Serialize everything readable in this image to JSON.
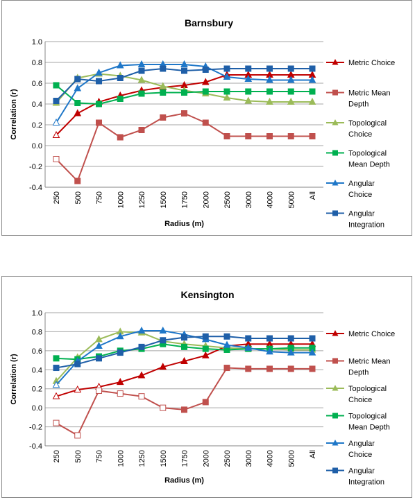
{
  "chart_data": [
    {
      "type": "line",
      "title": "Barnsbury",
      "xlabel": "Radius (m)",
      "ylabel": "Correlation (r)",
      "categories": [
        "250",
        "500",
        "750",
        "1000",
        "1250",
        "1500",
        "1750",
        "2000",
        "2500",
        "3000",
        "4000",
        "5000",
        "All"
      ],
      "ylim": [
        -0.4,
        1.0
      ],
      "yticks": [
        "-0.4",
        "-0.2",
        "0.0",
        "0.2",
        "0.4",
        "0.6",
        "0.8",
        "1.0"
      ],
      "grid": true,
      "legend_position": "right",
      "series": [
        {
          "name": "Metric Choice",
          "color": "#c00000",
          "marker": "triangle",
          "hollow_first": 1,
          "values": [
            0.1,
            0.31,
            0.42,
            0.48,
            0.53,
            0.56,
            0.58,
            0.61,
            0.68,
            0.68,
            0.68,
            0.68,
            0.68
          ]
        },
        {
          "name": "Metric Mean Depth",
          "color": "#c0504d",
          "marker": "square",
          "hollow_first": 1,
          "values": [
            -0.13,
            -0.34,
            0.22,
            0.08,
            0.15,
            0.27,
            0.31,
            0.22,
            0.09,
            0.09,
            0.09,
            0.09,
            0.09
          ]
        },
        {
          "name": "Topological Choice",
          "color": "#9bbb59",
          "marker": "triangle",
          "hollow_first": 0,
          "values": [
            0.41,
            0.65,
            0.69,
            0.67,
            0.63,
            0.57,
            0.53,
            0.5,
            0.46,
            0.43,
            0.42,
            0.42,
            0.42
          ]
        },
        {
          "name": "Topological Mean Depth",
          "color": "#00b050",
          "marker": "square",
          "hollow_first": 0,
          "values": [
            0.58,
            0.41,
            0.4,
            0.45,
            0.5,
            0.51,
            0.51,
            0.52,
            0.52,
            0.52,
            0.52,
            0.52,
            0.52
          ]
        },
        {
          "name": "Angular Choice",
          "color": "#1f77c8",
          "marker": "triangle",
          "hollow_first": 1,
          "values": [
            0.22,
            0.55,
            0.7,
            0.77,
            0.78,
            0.78,
            0.78,
            0.76,
            0.66,
            0.64,
            0.63,
            0.63,
            0.63
          ]
        },
        {
          "name": "Angular Integration",
          "color": "#1f5fa8",
          "marker": "square",
          "hollow_first": 0,
          "values": [
            0.43,
            0.64,
            0.62,
            0.65,
            0.72,
            0.74,
            0.72,
            0.73,
            0.74,
            0.74,
            0.74,
            0.74,
            0.74
          ]
        }
      ]
    },
    {
      "type": "line",
      "title": "Kensington",
      "xlabel": "Radius (m)",
      "ylabel": "Correlation (r)",
      "categories": [
        "250",
        "500",
        "750",
        "1000",
        "1250",
        "1500",
        "1750",
        "2000",
        "2500",
        "3000",
        "4000",
        "5000",
        "All"
      ],
      "ylim": [
        -0.4,
        1.0
      ],
      "yticks": [
        "-0.4",
        "-0.2",
        "0.0",
        "0.2",
        "0.4",
        "0.6",
        "0.8",
        "1.0"
      ],
      "grid": true,
      "legend_position": "right",
      "series": [
        {
          "name": "Metric Choice",
          "color": "#c00000",
          "marker": "triangle",
          "hollow_first": 3,
          "values": [
            0.12,
            0.19,
            0.22,
            0.27,
            0.34,
            0.43,
            0.49,
            0.55,
            0.65,
            0.67,
            0.67,
            0.67,
            0.67
          ]
        },
        {
          "name": "Metric Mean Depth",
          "color": "#c0504d",
          "marker": "square",
          "hollow_first": 6,
          "values": [
            -0.16,
            -0.29,
            0.18,
            0.15,
            0.12,
            0.0,
            -0.02,
            0.06,
            0.42,
            0.41,
            0.41,
            0.41,
            0.41
          ]
        },
        {
          "name": "Topological Choice",
          "color": "#9bbb59",
          "marker": "triangle",
          "hollow_first": 0,
          "values": [
            0.28,
            0.53,
            0.72,
            0.8,
            0.79,
            0.7,
            0.67,
            0.65,
            0.63,
            0.62,
            0.62,
            0.61,
            0.61
          ]
        },
        {
          "name": "Topological Mean Depth",
          "color": "#00b050",
          "marker": "square",
          "hollow_first": 0,
          "values": [
            0.52,
            0.51,
            0.54,
            0.6,
            0.62,
            0.67,
            0.64,
            0.62,
            0.61,
            0.62,
            0.62,
            0.63,
            0.63
          ]
        },
        {
          "name": "Angular Choice",
          "color": "#1f77c8",
          "marker": "triangle",
          "hollow_first": 1,
          "values": [
            0.24,
            0.49,
            0.65,
            0.75,
            0.81,
            0.81,
            0.77,
            0.72,
            0.66,
            0.63,
            0.59,
            0.58,
            0.58
          ]
        },
        {
          "name": "Angular Integration",
          "color": "#1f5fa8",
          "marker": "square",
          "hollow_first": 0,
          "values": [
            0.42,
            0.46,
            0.52,
            0.58,
            0.64,
            0.71,
            0.74,
            0.75,
            0.75,
            0.73,
            0.73,
            0.73,
            0.73
          ]
        }
      ]
    }
  ]
}
